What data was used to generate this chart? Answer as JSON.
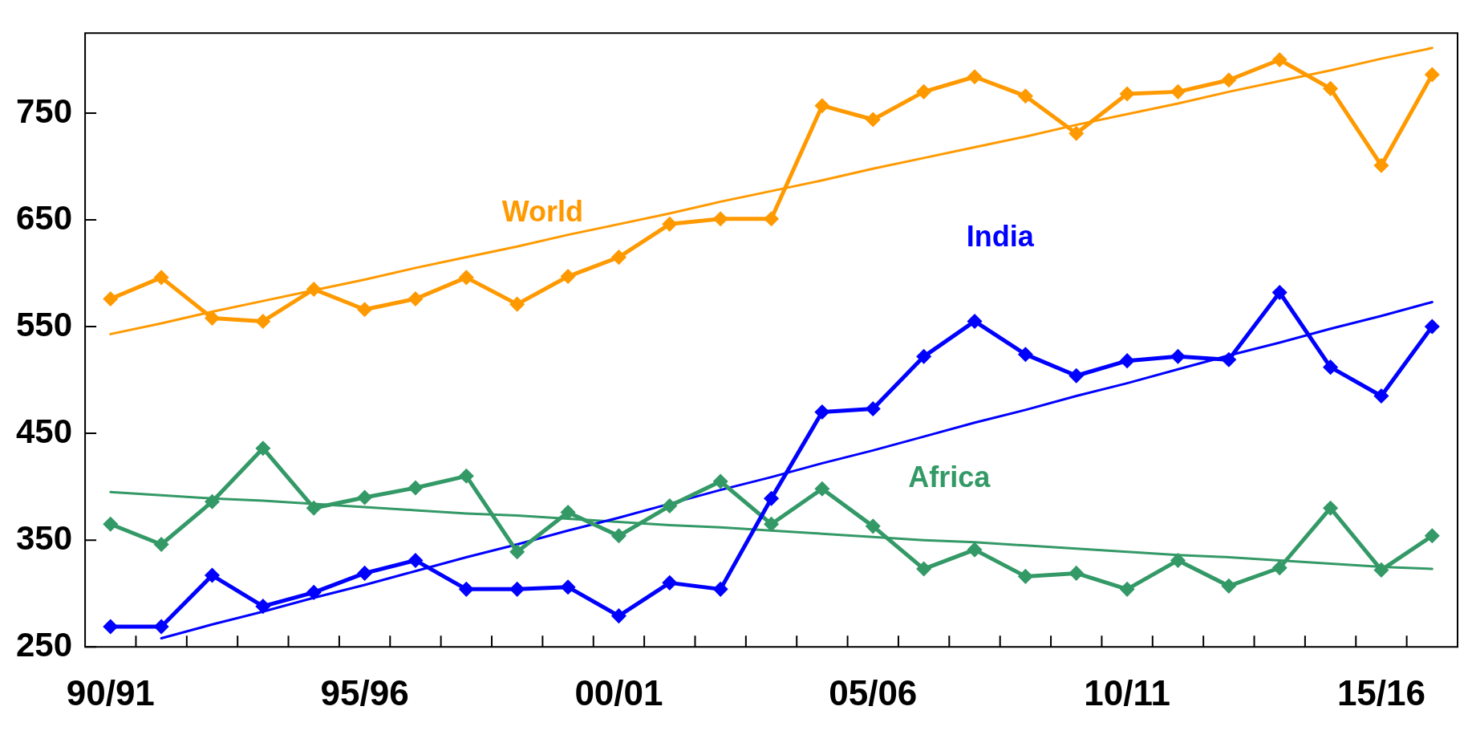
{
  "chart_data": {
    "type": "line",
    "categories": [
      "90/91",
      null,
      null,
      null,
      null,
      "95/96",
      null,
      null,
      null,
      null,
      "00/01",
      null,
      null,
      null,
      null,
      "05/06",
      null,
      null,
      null,
      null,
      "10/11",
      null,
      null,
      null,
      null,
      "15/16",
      null
    ],
    "series": [
      {
        "name": "World",
        "color": "#ff9900",
        "marker": "diamond",
        "values": [
          576,
          596,
          558,
          555,
          585,
          566,
          576,
          596,
          571,
          597,
          615,
          646,
          651,
          651,
          757,
          744,
          770,
          784,
          766,
          731,
          768,
          770,
          781,
          800,
          773,
          701,
          786
        ]
      },
      {
        "name": "India",
        "color": "#0000ff",
        "marker": "diamond",
        "values": [
          269,
          269,
          317,
          288,
          301,
          319,
          331,
          304,
          304,
          306,
          279,
          310,
          304,
          389,
          470,
          473,
          522,
          555,
          524,
          504,
          518,
          522,
          519,
          582,
          512,
          485,
          550
        ]
      },
      {
        "name": "Africa",
        "color": "#339966",
        "marker": "diamond",
        "values": [
          365,
          346,
          386,
          436,
          380,
          390,
          399,
          410,
          339,
          376,
          354,
          382,
          405,
          365,
          398,
          363,
          323,
          341,
          316,
          319,
          304,
          331,
          307,
          324,
          380,
          322,
          354
        ]
      },
      {
        "color": "#ff9900",
        "marker": "none",
        "values": [
          543,
          553,
          564,
          574,
          584,
          594,
          605,
          615,
          625,
          636,
          646,
          656,
          667,
          677,
          687,
          698,
          708,
          718,
          728,
          739,
          749,
          759,
          770,
          780,
          790,
          801,
          811
        ]
      },
      {
        "color": "#0000ff",
        "marker": "none",
        "values": [
          null,
          258,
          271,
          283,
          296,
          308,
          321,
          334,
          346,
          359,
          371,
          384,
          397,
          409,
          422,
          434,
          447,
          460,
          472,
          485,
          497,
          510,
          523,
          535,
          548,
          560,
          573
        ]
      },
      {
        "color": "#339966",
        "marker": "none",
        "values": [
          395,
          392,
          389,
          387,
          384,
          381,
          378,
          375,
          373,
          370,
          367,
          364,
          362,
          359,
          356,
          353,
          350,
          348,
          345,
          342,
          339,
          336,
          334,
          331,
          328,
          325,
          323
        ]
      }
    ],
    "ylim": [
      250,
      825
    ],
    "yticks": [
      250,
      350,
      450,
      550,
      650,
      750
    ],
    "legend": false,
    "grid": false
  }
}
